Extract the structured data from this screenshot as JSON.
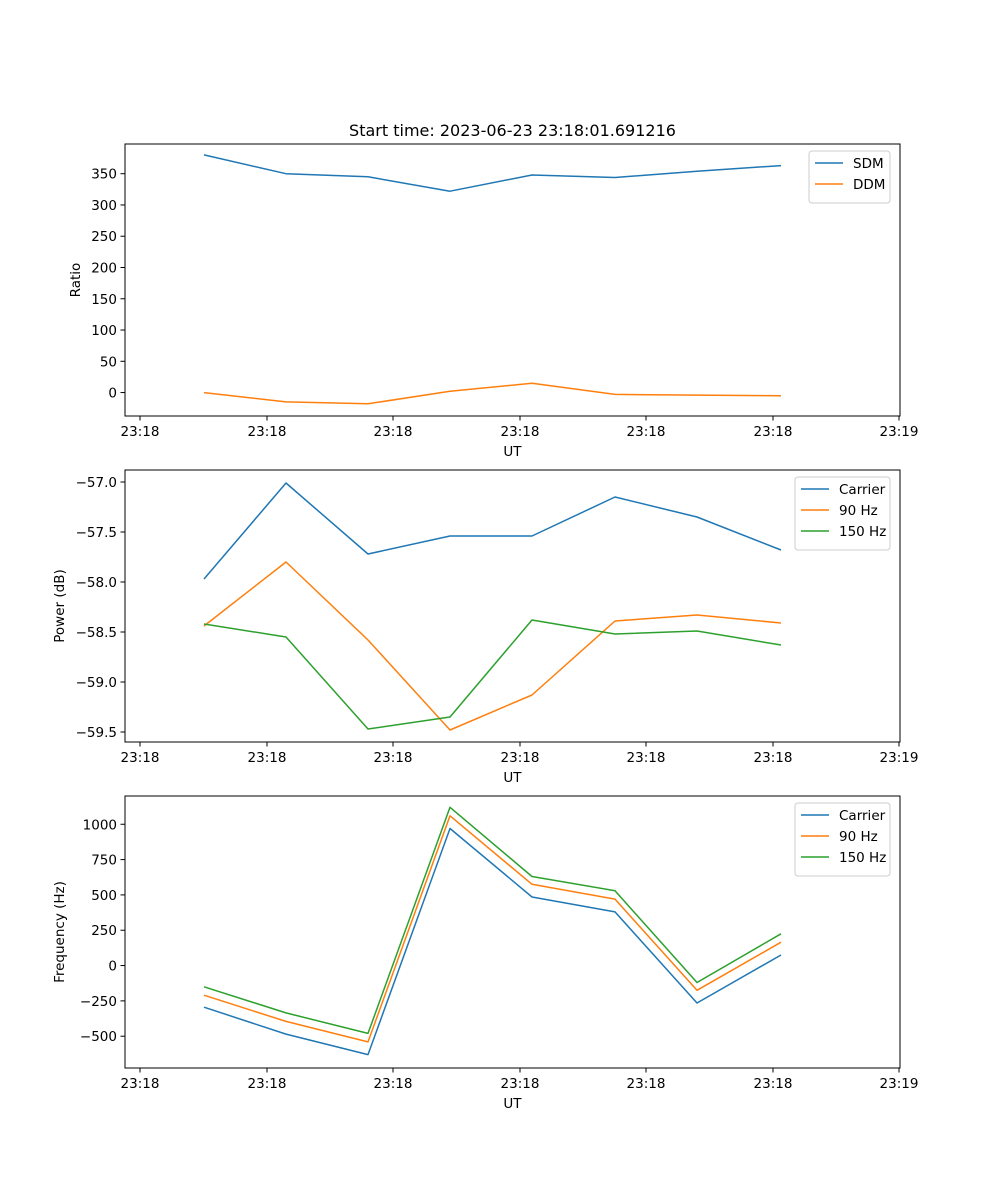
{
  "figure_title": "Start time: 2023-06-23 23:18:01.691216",
  "colors": {
    "blue": "#1f77b4",
    "orange": "#ff7f0e",
    "green": "#2ca02c"
  },
  "chart_data": [
    {
      "type": "line",
      "title": "Start time: 2023-06-23 23:18:01.691216",
      "xlabel": "UT",
      "ylabel": "Ratio",
      "x_ticks": [
        "23:18",
        "23:18",
        "23:18",
        "23:18",
        "23:18",
        "23:18",
        "23:19"
      ],
      "ylim": [
        -37.5,
        397.5
      ],
      "y_ticks": [
        0,
        50,
        100,
        150,
        200,
        250,
        300,
        350
      ],
      "y_tick_labels": [
        "0",
        "50",
        "100",
        "150",
        "200",
        "250",
        "300",
        "350"
      ],
      "legend": "top-right",
      "series": [
        {
          "name": "SDM",
          "color": "#1f77b4",
          "values": [
            380,
            350,
            345,
            322,
            348,
            344,
            354,
            363
          ]
        },
        {
          "name": "DDM",
          "color": "#ff7f0e",
          "values": [
            0,
            -15,
            -18,
            2,
            15,
            -3,
            -4,
            -5
          ]
        }
      ]
    },
    {
      "type": "line",
      "xlabel": "UT",
      "ylabel": "Power (dB)",
      "x_ticks": [
        "23:18",
        "23:18",
        "23:18",
        "23:18",
        "23:18",
        "23:18",
        "23:19"
      ],
      "ylim": [
        -59.6,
        -56.88
      ],
      "y_ticks": [
        -59.5,
        -59.0,
        -58.5,
        -58.0,
        -57.5,
        -57.0
      ],
      "y_tick_labels": [
        "−59.5",
        "−59.0",
        "−58.5",
        "−58.0",
        "−57.5",
        "−57.0"
      ],
      "legend": "top-right",
      "series": [
        {
          "name": "Carrier",
          "color": "#1f77b4",
          "values": [
            -57.97,
            -57.01,
            -57.72,
            -57.54,
            -57.54,
            -57.15,
            -57.35,
            -57.68
          ]
        },
        {
          "name": "90 Hz",
          "color": "#ff7f0e",
          "values": [
            -58.44,
            -57.8,
            -58.58,
            -59.48,
            -59.13,
            -58.39,
            -58.33,
            -58.41
          ]
        },
        {
          "name": "150 Hz",
          "color": "#2ca02c",
          "values": [
            -58.42,
            -58.55,
            -59.47,
            -59.35,
            -58.38,
            -58.52,
            -58.49,
            -58.63
          ]
        }
      ]
    },
    {
      "type": "line",
      "xlabel": "UT",
      "ylabel": "Frequency (Hz)",
      "x_ticks": [
        "23:18",
        "23:18",
        "23:18",
        "23:18",
        "23:18",
        "23:18",
        "23:19"
      ],
      "ylim": [
        -725,
        1200
      ],
      "y_ticks": [
        -500,
        -250,
        0,
        250,
        500,
        750,
        1000
      ],
      "y_tick_labels": [
        "−500",
        "−250",
        "0",
        "250",
        "500",
        "750",
        "1000"
      ],
      "legend": "top-right",
      "series": [
        {
          "name": "Carrier",
          "color": "#1f77b4",
          "values": [
            -295,
            -485,
            -630,
            970,
            485,
            380,
            -265,
            75
          ]
        },
        {
          "name": "90 Hz",
          "color": "#ff7f0e",
          "values": [
            -210,
            -395,
            -540,
            1060,
            575,
            470,
            -175,
            165
          ]
        },
        {
          "name": "150 Hz",
          "color": "#2ca02c",
          "values": [
            -150,
            -335,
            -480,
            1120,
            630,
            530,
            -120,
            225
          ]
        }
      ]
    }
  ]
}
